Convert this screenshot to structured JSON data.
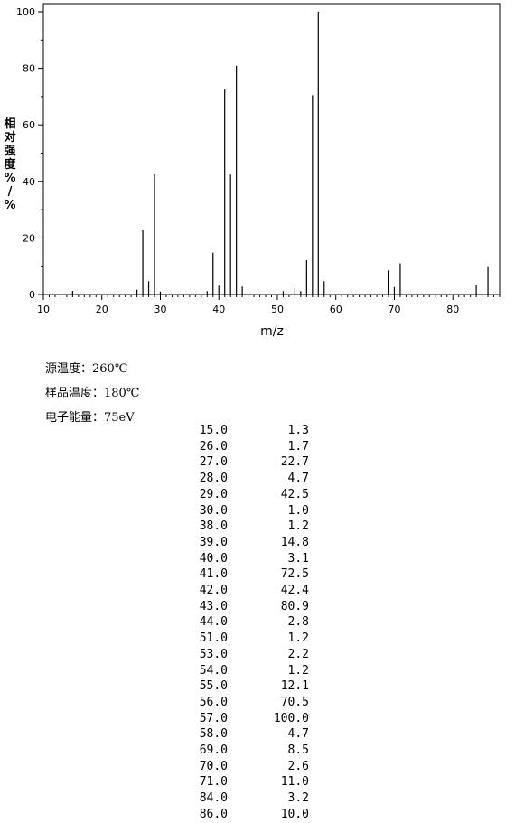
{
  "chart_data": {
    "type": "bar",
    "title": "",
    "xlabel": "m/z",
    "ylabel_chars": [
      "相",
      "对",
      "强",
      "度",
      "%",
      "/",
      "%"
    ],
    "xlim": [
      10,
      88
    ],
    "ylim": [
      0,
      100
    ],
    "xticks": [
      10,
      20,
      30,
      40,
      50,
      60,
      70,
      80
    ],
    "yticks": [
      0,
      20,
      40,
      60,
      80,
      100
    ],
    "peaks": [
      {
        "mz": 15.0,
        "intensity": 1.3
      },
      {
        "mz": 26.0,
        "intensity": 1.7
      },
      {
        "mz": 27.0,
        "intensity": 22.7
      },
      {
        "mz": 28.0,
        "intensity": 4.7
      },
      {
        "mz": 29.0,
        "intensity": 42.5
      },
      {
        "mz": 30.0,
        "intensity": 1.0
      },
      {
        "mz": 38.0,
        "intensity": 1.2
      },
      {
        "mz": 39.0,
        "intensity": 14.8
      },
      {
        "mz": 40.0,
        "intensity": 3.1
      },
      {
        "mz": 41.0,
        "intensity": 72.5
      },
      {
        "mz": 42.0,
        "intensity": 42.4
      },
      {
        "mz": 43.0,
        "intensity": 80.9
      },
      {
        "mz": 44.0,
        "intensity": 2.8
      },
      {
        "mz": 51.0,
        "intensity": 1.2
      },
      {
        "mz": 53.0,
        "intensity": 2.2
      },
      {
        "mz": 54.0,
        "intensity": 1.2
      },
      {
        "mz": 55.0,
        "intensity": 12.1
      },
      {
        "mz": 56.0,
        "intensity": 70.5
      },
      {
        "mz": 57.0,
        "intensity": 100.0
      },
      {
        "mz": 58.0,
        "intensity": 4.7
      },
      {
        "mz": 69.0,
        "intensity": 8.5
      },
      {
        "mz": 70.0,
        "intensity": 2.6
      },
      {
        "mz": 71.0,
        "intensity": 11.0
      },
      {
        "mz": 84.0,
        "intensity": 3.2
      },
      {
        "mz": 86.0,
        "intensity": 10.0
      }
    ]
  },
  "conditions": {
    "source_temp": "源温度：260℃",
    "sample_temp": "样品温度：180℃",
    "electron_energy": "电子能量：75eV"
  },
  "table_rows": [
    {
      "mz": "15.0",
      "intensity": "1.3"
    },
    {
      "mz": "26.0",
      "intensity": "1.7"
    },
    {
      "mz": "27.0",
      "intensity": "22.7"
    },
    {
      "mz": "28.0",
      "intensity": "4.7"
    },
    {
      "mz": "29.0",
      "intensity": "42.5"
    },
    {
      "mz": "30.0",
      "intensity": "1.0"
    },
    {
      "mz": "38.0",
      "intensity": "1.2"
    },
    {
      "mz": "39.0",
      "intensity": "14.8"
    },
    {
      "mz": "40.0",
      "intensity": "3.1"
    },
    {
      "mz": "41.0",
      "intensity": "72.5"
    },
    {
      "mz": "42.0",
      "intensity": "42.4"
    },
    {
      "mz": "43.0",
      "intensity": "80.9"
    },
    {
      "mz": "44.0",
      "intensity": "2.8"
    },
    {
      "mz": "51.0",
      "intensity": "1.2"
    },
    {
      "mz": "53.0",
      "intensity": "2.2"
    },
    {
      "mz": "54.0",
      "intensity": "1.2"
    },
    {
      "mz": "55.0",
      "intensity": "12.1"
    },
    {
      "mz": "56.0",
      "intensity": "70.5"
    },
    {
      "mz": "57.0",
      "intensity": "100.0"
    },
    {
      "mz": "58.0",
      "intensity": "4.7"
    },
    {
      "mz": "69.0",
      "intensity": "8.5"
    },
    {
      "mz": "70.0",
      "intensity": "2.6"
    },
    {
      "mz": "71.0",
      "intensity": "11.0"
    },
    {
      "mz": "84.0",
      "intensity": "3.2"
    },
    {
      "mz": "86.0",
      "intensity": "10.0"
    }
  ]
}
